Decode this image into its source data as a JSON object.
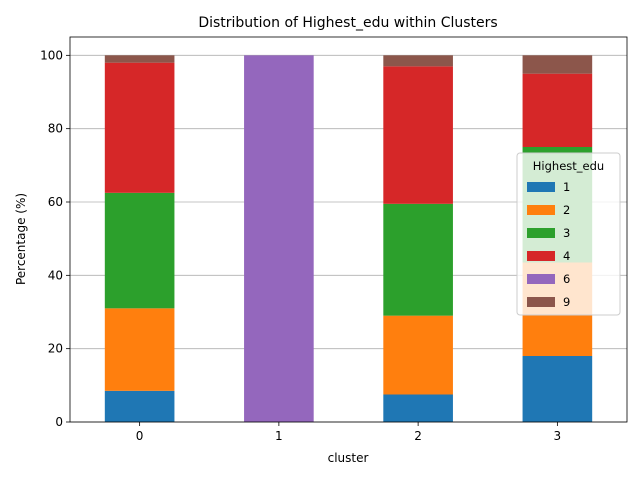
{
  "chart_data": {
    "type": "bar",
    "stacked": true,
    "title": "Distribution of Highest_edu within Clusters",
    "xlabel": "cluster",
    "ylabel": "Percentage (%)",
    "categories": [
      "0",
      "1",
      "2",
      "3"
    ],
    "ylim": [
      0,
      105
    ],
    "yticks": [
      0,
      20,
      40,
      60,
      80,
      100
    ],
    "grid": "y",
    "legend": {
      "title": "Highest_edu",
      "placement": "right"
    },
    "series": [
      {
        "name": "1",
        "color": "#1f77b4",
        "values": [
          8.5,
          0,
          7.5,
          18
        ]
      },
      {
        "name": "2",
        "color": "#ff7f0e",
        "values": [
          22.5,
          0,
          21.5,
          25.5
        ]
      },
      {
        "name": "3",
        "color": "#2ca02c",
        "values": [
          31.5,
          0,
          30.5,
          31.5
        ]
      },
      {
        "name": "4",
        "color": "#d62728",
        "values": [
          35.5,
          0,
          37.5,
          20
        ]
      },
      {
        "name": "6",
        "color": "#9467bd",
        "values": [
          0,
          100,
          0,
          0
        ]
      },
      {
        "name": "9",
        "color": "#8c564b",
        "values": [
          2,
          0,
          3,
          5
        ]
      }
    ]
  }
}
